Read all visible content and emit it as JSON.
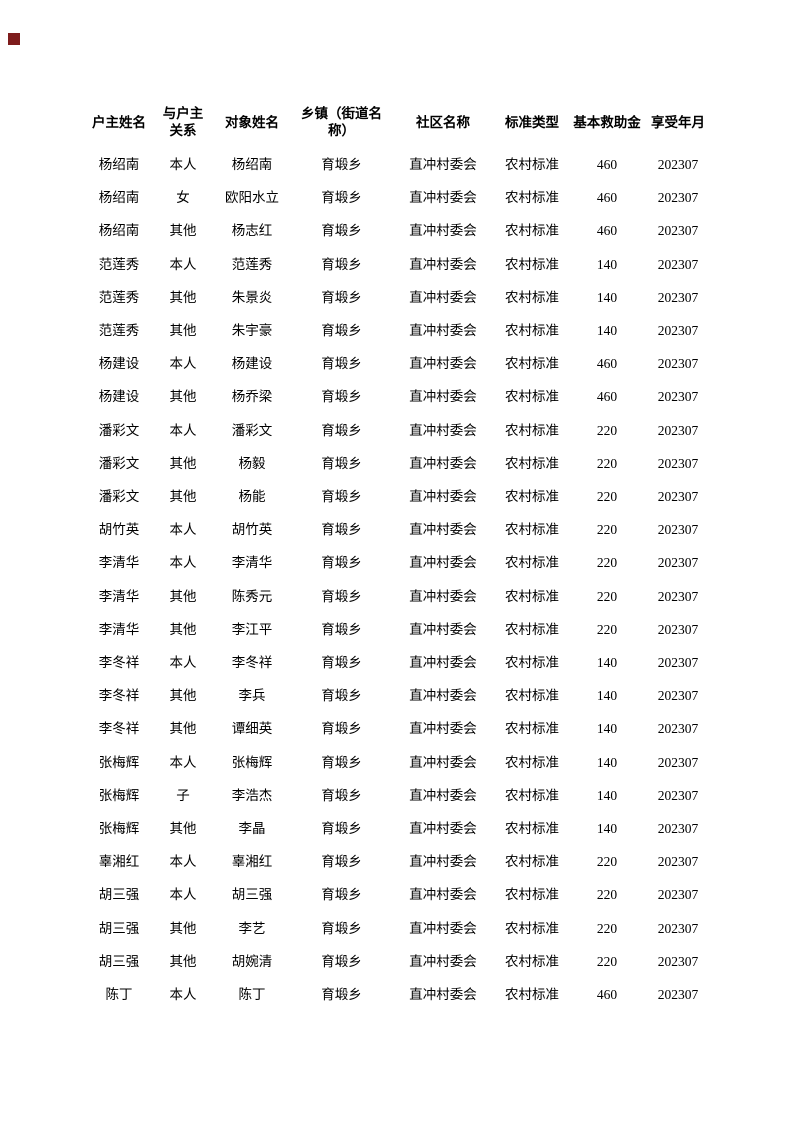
{
  "page": {
    "background": "#ffffff",
    "corner_mark_color": "#7e1c1c"
  },
  "table": {
    "columns": [
      {
        "key": "household_head",
        "label": "户主姓名"
      },
      {
        "key": "relationship",
        "label": "与户主\n关系"
      },
      {
        "key": "person_name",
        "label": "对象姓名"
      },
      {
        "key": "township",
        "label": "乡镇（街道名\n称）"
      },
      {
        "key": "community",
        "label": "社区名称"
      },
      {
        "key": "standard_type",
        "label": "标准类型"
      },
      {
        "key": "basic_subsidy",
        "label": "基本救助金"
      },
      {
        "key": "period",
        "label": "享受年月"
      }
    ],
    "rows": [
      [
        "杨绍南",
        "本人",
        "杨绍南",
        "育塅乡",
        "直冲村委会",
        "农村标准",
        "460",
        "202307"
      ],
      [
        "杨绍南",
        "女",
        "欧阳水立",
        "育塅乡",
        "直冲村委会",
        "农村标准",
        "460",
        "202307"
      ],
      [
        "杨绍南",
        "其他",
        "杨志红",
        "育塅乡",
        "直冲村委会",
        "农村标准",
        "460",
        "202307"
      ],
      [
        "范莲秀",
        "本人",
        "范莲秀",
        "育塅乡",
        "直冲村委会",
        "农村标准",
        "140",
        "202307"
      ],
      [
        "范莲秀",
        "其他",
        "朱景炎",
        "育塅乡",
        "直冲村委会",
        "农村标准",
        "140",
        "202307"
      ],
      [
        "范莲秀",
        "其他",
        "朱宇豪",
        "育塅乡",
        "直冲村委会",
        "农村标准",
        "140",
        "202307"
      ],
      [
        "杨建设",
        "本人",
        "杨建设",
        "育塅乡",
        "直冲村委会",
        "农村标准",
        "460",
        "202307"
      ],
      [
        "杨建设",
        "其他",
        "杨乔梁",
        "育塅乡",
        "直冲村委会",
        "农村标准",
        "460",
        "202307"
      ],
      [
        "潘彩文",
        "本人",
        "潘彩文",
        "育塅乡",
        "直冲村委会",
        "农村标准",
        "220",
        "202307"
      ],
      [
        "潘彩文",
        "其他",
        "杨毅",
        "育塅乡",
        "直冲村委会",
        "农村标准",
        "220",
        "202307"
      ],
      [
        "潘彩文",
        "其他",
        "杨能",
        "育塅乡",
        "直冲村委会",
        "农村标准",
        "220",
        "202307"
      ],
      [
        "胡竹英",
        "本人",
        "胡竹英",
        "育塅乡",
        "直冲村委会",
        "农村标准",
        "220",
        "202307"
      ],
      [
        "李清华",
        "本人",
        "李清华",
        "育塅乡",
        "直冲村委会",
        "农村标准",
        "220",
        "202307"
      ],
      [
        "李清华",
        "其他",
        "陈秀元",
        "育塅乡",
        "直冲村委会",
        "农村标准",
        "220",
        "202307"
      ],
      [
        "李清华",
        "其他",
        "李江平",
        "育塅乡",
        "直冲村委会",
        "农村标准",
        "220",
        "202307"
      ],
      [
        "李冬祥",
        "本人",
        "李冬祥",
        "育塅乡",
        "直冲村委会",
        "农村标准",
        "140",
        "202307"
      ],
      [
        "李冬祥",
        "其他",
        "李兵",
        "育塅乡",
        "直冲村委会",
        "农村标准",
        "140",
        "202307"
      ],
      [
        "李冬祥",
        "其他",
        "谭细英",
        "育塅乡",
        "直冲村委会",
        "农村标准",
        "140",
        "202307"
      ],
      [
        "张梅辉",
        "本人",
        "张梅辉",
        "育塅乡",
        "直冲村委会",
        "农村标准",
        "140",
        "202307"
      ],
      [
        "张梅辉",
        "子",
        "李浩杰",
        "育塅乡",
        "直冲村委会",
        "农村标准",
        "140",
        "202307"
      ],
      [
        "张梅辉",
        "其他",
        "李晶",
        "育塅乡",
        "直冲村委会",
        "农村标准",
        "140",
        "202307"
      ],
      [
        "辜湘红",
        "本人",
        "辜湘红",
        "育塅乡",
        "直冲村委会",
        "农村标准",
        "220",
        "202307"
      ],
      [
        "胡三强",
        "本人",
        "胡三强",
        "育塅乡",
        "直冲村委会",
        "农村标准",
        "220",
        "202307"
      ],
      [
        "胡三强",
        "其他",
        "李艺",
        "育塅乡",
        "直冲村委会",
        "农村标准",
        "220",
        "202307"
      ],
      [
        "胡三强",
        "其他",
        "胡婉清",
        "育塅乡",
        "直冲村委会",
        "农村标准",
        "220",
        "202307"
      ],
      [
        "陈丁",
        "本人",
        "陈丁",
        "育塅乡",
        "直冲村委会",
        "农村标准",
        "460",
        "202307"
      ]
    ]
  }
}
